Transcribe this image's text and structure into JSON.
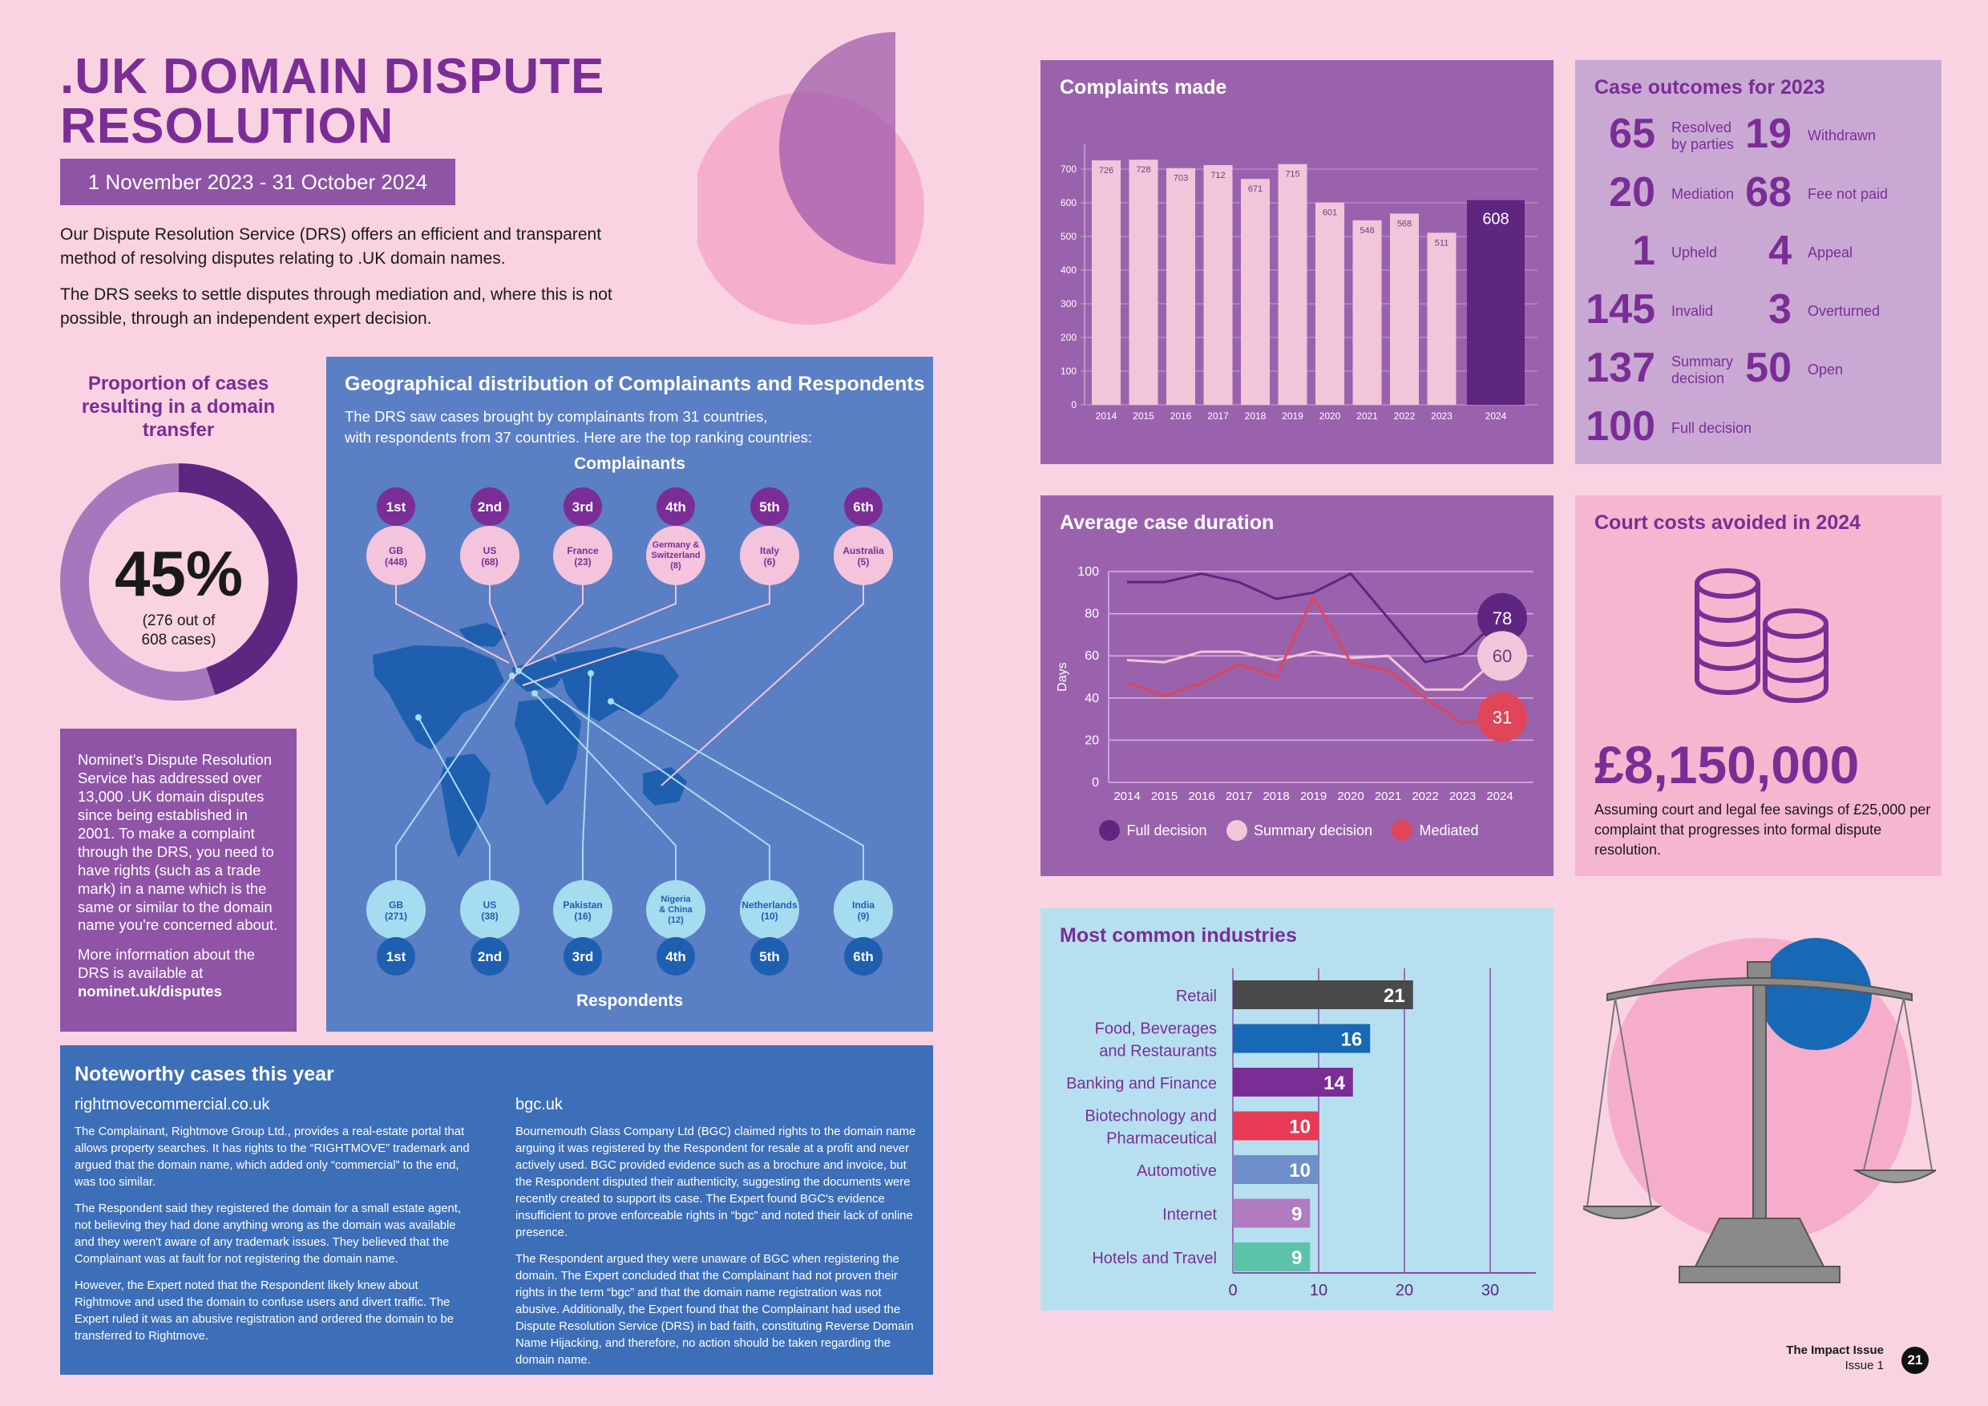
{
  "header": {
    "title_line1": ".UK DOMAIN DISPUTE",
    "title_line2": "RESOLUTION",
    "date_range": "1 November 2023 - 31 October 2024",
    "intro_p1": "Our Dispute Resolution Service (DRS) offers an efficient and transparent method of resolving disputes relating to .UK domain names.",
    "intro_p2": "The DRS seeks to settle disputes through mediation and, where this is not possible, through an independent expert decision."
  },
  "proportion": {
    "title": "Proportion of cases resulting in a domain transfer",
    "percent_label": "45%",
    "percent_value": 45,
    "sub1": "(276 out of",
    "sub2": "608 cases)"
  },
  "nominet_box": {
    "p1": "Nominet's Dispute Resolution Service has addressed over 13,000 .UK domain disputes since being established in 2001. To make a complaint through the DRS, you need to have rights (such as a trade mark) in a name which is the same or similar to the domain name you're concerned about.",
    "p2": "More information about the DRS is available at",
    "link": "nominet.uk/disputes"
  },
  "geo": {
    "title": "Geographical distribution of Complainants and Respondents",
    "desc1": "The DRS saw cases brought by complainants from 31 countries,",
    "desc2": "with respondents from 37 countries. Here are the top ranking countries:",
    "complainants_label": "Complainants",
    "respondents_label": "Respondents",
    "complainants": [
      {
        "rank": "1st",
        "name": "GB",
        "count": "(448)"
      },
      {
        "rank": "2nd",
        "name": "US",
        "count": "(68)"
      },
      {
        "rank": "3rd",
        "name": "France",
        "count": "(23)"
      },
      {
        "rank": "4th",
        "name": "Germany & Switzerland",
        "count": "(8)"
      },
      {
        "rank": "5th",
        "name": "Italy",
        "count": "(6)"
      },
      {
        "rank": "6th",
        "name": "Australia",
        "count": "(5)"
      }
    ],
    "respondents": [
      {
        "rank": "1st",
        "name": "GB",
        "count": "(271)"
      },
      {
        "rank": "2nd",
        "name": "US",
        "count": "(38)"
      },
      {
        "rank": "3rd",
        "name": "Pakistan",
        "count": "(16)"
      },
      {
        "rank": "4th",
        "name": "Nigeria & China",
        "count": "(12)"
      },
      {
        "rank": "5th",
        "name": "Netherlands",
        "count": "(10)"
      },
      {
        "rank": "6th",
        "name": "India",
        "count": "(9)"
      }
    ]
  },
  "noteworthy": {
    "title": "Noteworthy cases this year",
    "case1": {
      "domain": "rightmovecommercial.co.uk",
      "p1": "The Complainant, Rightmove Group Ltd., provides a real-estate portal that allows property searches. It has rights to the “RIGHTMOVE” trademark and argued that the domain name, which added only “commercial” to the end, was too similar.",
      "p2": "The Respondent said they registered the domain for a small estate agent, not believing they had done anything wrong as the domain was available and they weren't aware of any trademark issues. They believed that the Complainant was at fault for not registering the domain name.",
      "p3": "However, the Expert noted that the Respondent likely knew about Rightmove and used the domain to confuse users and divert traffic. The Expert ruled it was an abusive registration and ordered the domain to be transferred to Rightmove."
    },
    "case2": {
      "domain": "bgc.uk",
      "p1": "Bournemouth Glass Company Ltd (BGC) claimed rights to the domain name arguing it was registered by the Respondent for resale at a profit and never actively used. BGC provided evidence such as a brochure and invoice, but the Respondent disputed their authenticity, suggesting the documents were recently created to support its case. The Expert found BGC's evidence insufficient to prove enforceable rights in “bgc” and noted their lack of online presence.",
      "p2": "The Respondent argued they were unaware of BGC when registering the domain. The Expert concluded that the Complainant had not proven their rights in the term “bgc” and that the domain name registration was not abusive. Additionally, the Expert found that the Complainant had used the Dispute Resolution Service (DRS) in bad faith, constituting Reverse Domain Name Hijacking, and therefore, no action should be taken regarding the domain name."
    }
  },
  "outcomes": {
    "title": "Case outcomes for 2023",
    "items": [
      {
        "num": "65",
        "label": "Resolved by parties"
      },
      {
        "num": "19",
        "label": "Withdrawn"
      },
      {
        "num": "20",
        "label": "Mediation"
      },
      {
        "num": "68",
        "label": "Fee not paid"
      },
      {
        "num": "1",
        "label": "Upheld"
      },
      {
        "num": "4",
        "label": "Appeal"
      },
      {
        "num": "145",
        "label": "Invalid"
      },
      {
        "num": "3",
        "label": "Overturned"
      },
      {
        "num": "137",
        "label": "Summary decision"
      },
      {
        "num": "50",
        "label": "Open"
      },
      {
        "num": "100",
        "label": "Full decision"
      }
    ]
  },
  "court": {
    "title": "Court costs avoided in 2024",
    "amount": "£8,150,000",
    "note": "Assuming court and legal fee savings of £25,000 per complaint that progresses into formal dispute resolution."
  },
  "footer": {
    "issue": "The Impact Issue",
    "issue_num": "Issue 1",
    "page": "21"
  },
  "colors": {
    "purple_dark": "#5e2680",
    "purple": "#7b2d96",
    "panel_purple": "#9a62ad",
    "light_pink_bar": "#f1c6da",
    "red": "#e0455a",
    "blue": "#5b7fc4"
  },
  "chart_data": [
    {
      "id": "complaints",
      "type": "bar",
      "title": "Complaints made",
      "categories": [
        "2014",
        "2015",
        "2016",
        "2017",
        "2018",
        "2019",
        "2020",
        "2021",
        "2022",
        "2023",
        "2024"
      ],
      "values": [
        726,
        728,
        703,
        712,
        671,
        715,
        601,
        548,
        568,
        511,
        608
      ],
      "ylim": [
        0,
        750
      ],
      "yticks": [
        0,
        100,
        200,
        300,
        400,
        500,
        600,
        700
      ]
    },
    {
      "id": "duration",
      "type": "line",
      "title": "Average case duration",
      "ylabel": "Days",
      "x": [
        "2014",
        "2015",
        "2016",
        "2017",
        "2018",
        "2019",
        "2020",
        "2021",
        "2022",
        "2023",
        "2024"
      ],
      "ylim": [
        0,
        100
      ],
      "yticks": [
        0,
        20,
        40,
        60,
        80,
        100
      ],
      "series": [
        {
          "name": "Full decision",
          "values": [
            95,
            95,
            99,
            95,
            87,
            90,
            99,
            78,
            57,
            61,
            78
          ],
          "end_label": "78"
        },
        {
          "name": "Summary decision",
          "values": [
            58,
            57,
            62,
            62,
            58,
            62,
            59,
            60,
            44,
            44,
            60
          ],
          "end_label": "60"
        },
        {
          "name": "Mediated",
          "values": [
            47,
            41,
            47,
            56,
            50,
            88,
            57,
            53,
            40,
            28,
            31
          ],
          "end_label": "31"
        }
      ]
    },
    {
      "id": "industries",
      "type": "bar",
      "title": "Most common industries",
      "orientation": "horizontal",
      "categories": [
        {
          "l1": "Retail",
          "l2": ""
        },
        {
          "l1": "Food, Beverages",
          "l2": "and Restaurants"
        },
        {
          "l1": "Banking and Finance",
          "l2": ""
        },
        {
          "l1": "Biotechnology and",
          "l2": "Pharmaceutical"
        },
        {
          "l1": "Automotive",
          "l2": ""
        },
        {
          "l1": "Internet",
          "l2": ""
        },
        {
          "l1": "Hotels and Travel",
          "l2": ""
        }
      ],
      "values": [
        21,
        16,
        14,
        10,
        10,
        9,
        9
      ],
      "bar_colors": [
        "#4a4a4a",
        "#1769b5",
        "#7b2d96",
        "#e63a55",
        "#6f8fcb",
        "#b07bc0",
        "#5cc3a8"
      ],
      "xlim": [
        0,
        35
      ],
      "xticks": [
        0,
        10,
        20,
        30
      ]
    }
  ]
}
